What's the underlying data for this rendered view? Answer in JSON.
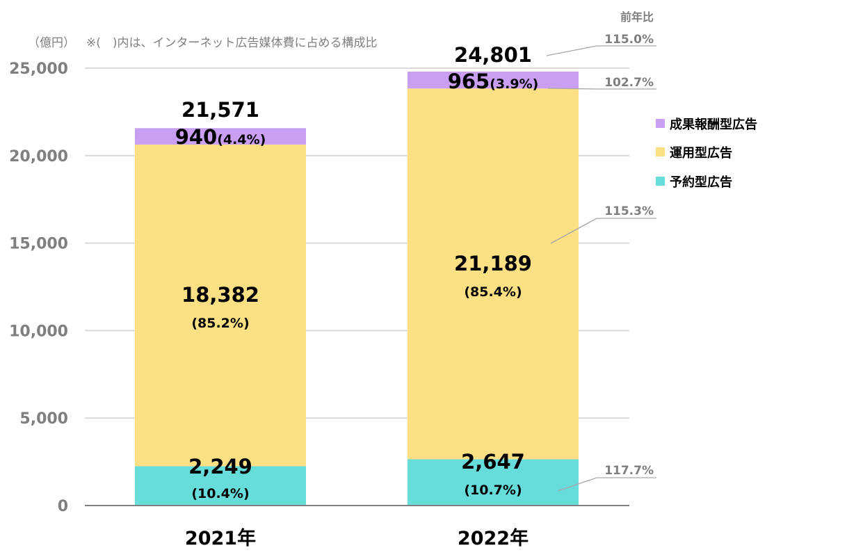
{
  "chart_data": {
    "type": "bar",
    "stacked": true,
    "unit_label": "（億円）",
    "note": "※(　)内は、インターネット広告媒体費に占める構成比",
    "categories": [
      "2021年",
      "2022年"
    ],
    "ylim": [
      0,
      25000
    ],
    "yticks": [
      "0",
      "5,000",
      "10,000",
      "15,000",
      "20,000",
      "25,000"
    ],
    "grid": true,
    "legend_position": "right",
    "series": [
      {
        "name": "予約型広告",
        "color": "#66dcdb",
        "values": [
          2249,
          2647
        ],
        "labels": [
          "2,249",
          "2,647"
        ],
        "shares": [
          "(10.4%)",
          "(10.7%)"
        ],
        "yoy": "117.7%"
      },
      {
        "name": "運用型広告",
        "color": "#fde083",
        "values": [
          18382,
          21189
        ],
        "labels": [
          "18,382",
          "21,189"
        ],
        "shares": [
          "(85.2%)",
          "(85.4%)"
        ],
        "yoy": "115.3%"
      },
      {
        "name": "成果報酬型広告",
        "color": "#c89ff2",
        "values": [
          940,
          965
        ],
        "labels": [
          "940",
          "965"
        ],
        "shares": [
          "(4.4%)",
          "(3.9%)"
        ],
        "yoy": "102.7%"
      }
    ],
    "totals": [
      21571,
      24801
    ],
    "total_labels": [
      "21,571",
      "24,801"
    ],
    "total_yoy": "115.0%",
    "yoy_header": "前年比"
  }
}
